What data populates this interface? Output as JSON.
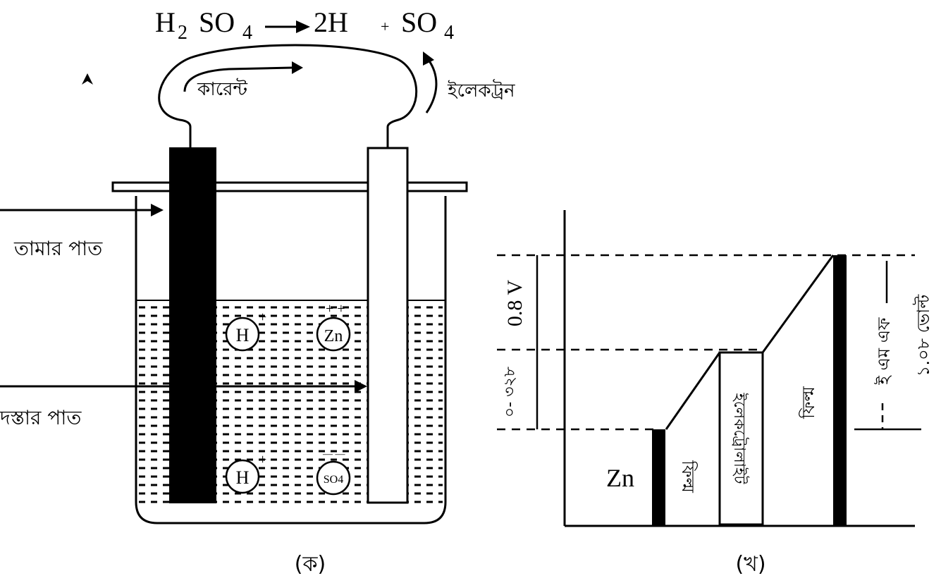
{
  "equation": {
    "h2": "H",
    "h2_sub": "2",
    "so4_left": "SO",
    "so4_left_sub": "4",
    "product_h": "2H",
    "plus": "+",
    "so4_right": "SO",
    "so4_right_sub": "4"
  },
  "cell": {
    "current_label": "কারেন্ট",
    "electron_label": "ইলেকট্রন",
    "copper_plate_label": "তামার পাত",
    "zinc_plate_label": "দস্তার পাত",
    "ions": {
      "h_top": "H",
      "zn": "Zn",
      "h_bottom": "H",
      "so4": "SO4",
      "plus": "+",
      "plus_plus": "+ +",
      "minus_minus": "— —"
    },
    "caption": "(ক)"
  },
  "potential": {
    "v_label_top": "0.8 V",
    "v_label_bottom": "০- ৩২৮",
    "zn_label": "Zn",
    "film_label_left": "ফিল্ম",
    "electrolyte_label": "ইলেকট্রোলাইট",
    "film_label_right": "ফিল্ম",
    "emf_label": "ই এম এফ",
    "volt_label": "১.০৮ ভোল্ট",
    "caption": "(খ)"
  }
}
